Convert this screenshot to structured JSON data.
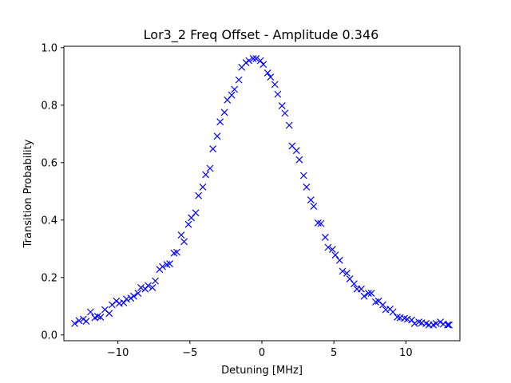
{
  "chart_data": {
    "type": "scatter",
    "title": "Lor3_2 Freq Offset - Amplitude 0.346",
    "xlabel": "Detuning [MHz]",
    "ylabel": "Transition Probability",
    "xlim": [
      -13.75,
      13.75
    ],
    "ylim": [
      -0.02,
      1.005
    ],
    "xticks": [
      -10,
      -5,
      0,
      5,
      10
    ],
    "xtick_labels": [
      "−10",
      "−5",
      "0",
      "5",
      "10"
    ],
    "yticks": [
      0.0,
      0.2,
      0.4,
      0.6,
      0.8,
      1.0
    ],
    "ytick_labels": [
      "0.0",
      "0.2",
      "0.4",
      "0.6",
      "0.8",
      "1.0"
    ],
    "grid": false,
    "marker": "x",
    "series": [
      {
        "color": "#0000ff",
        "x": [
          -13.0,
          -12.7,
          -12.4,
          -12.2,
          -11.9,
          -11.6,
          -11.4,
          -11.2,
          -10.9,
          -10.6,
          -10.4,
          -10.1,
          -9.9,
          -9.6,
          -9.4,
          -9.1,
          -8.9,
          -8.6,
          -8.4,
          -8.1,
          -7.9,
          -7.6,
          -7.4,
          -7.1,
          -6.9,
          -6.6,
          -6.4,
          -6.1,
          -5.9,
          -5.6,
          -5.4,
          -5.1,
          -4.9,
          -4.6,
          -4.4,
          -4.1,
          -3.9,
          -3.6,
          -3.4,
          -3.1,
          -2.9,
          -2.6,
          -2.4,
          -2.1,
          -1.9,
          -1.6,
          -1.4,
          -1.1,
          -0.9,
          -0.6,
          -0.4,
          -0.1,
          0.1,
          0.4,
          0.6,
          0.9,
          1.1,
          1.4,
          1.6,
          1.9,
          2.1,
          2.4,
          2.6,
          2.9,
          3.1,
          3.4,
          3.6,
          3.9,
          4.1,
          4.4,
          4.6,
          4.9,
          5.1,
          5.4,
          5.6,
          5.9,
          6.1,
          6.4,
          6.6,
          6.9,
          7.1,
          7.4,
          7.6,
          7.9,
          8.1,
          8.4,
          8.6,
          8.9,
          9.1,
          9.4,
          9.6,
          9.9,
          10.1,
          10.4,
          10.6,
          10.9,
          11.1,
          11.4,
          11.6,
          11.9,
          12.1,
          12.4,
          12.6,
          12.9,
          13.0
        ],
        "y": [
          0.04,
          0.05,
          0.055,
          0.048,
          0.08,
          0.06,
          0.065,
          0.062,
          0.088,
          0.075,
          0.105,
          0.118,
          0.11,
          0.112,
          0.125,
          0.128,
          0.135,
          0.145,
          0.165,
          0.16,
          0.172,
          0.165,
          0.188,
          0.228,
          0.238,
          0.245,
          0.248,
          0.285,
          0.288,
          0.348,
          0.325,
          0.385,
          0.408,
          0.425,
          0.485,
          0.515,
          0.558,
          0.58,
          0.648,
          0.692,
          0.742,
          0.775,
          0.818,
          0.835,
          0.855,
          0.888,
          0.932,
          0.948,
          0.955,
          0.962,
          0.962,
          0.955,
          0.942,
          0.912,
          0.898,
          0.872,
          0.838,
          0.798,
          0.772,
          0.73,
          0.658,
          0.642,
          0.61,
          0.555,
          0.515,
          0.47,
          0.448,
          0.39,
          0.388,
          0.34,
          0.305,
          0.298,
          0.278,
          0.26,
          0.222,
          0.215,
          0.195,
          0.178,
          0.16,
          0.16,
          0.135,
          0.145,
          0.145,
          0.115,
          0.118,
          0.105,
          0.088,
          0.09,
          0.08,
          0.062,
          0.06,
          0.058,
          0.055,
          0.052,
          0.04,
          0.045,
          0.042,
          0.04,
          0.035,
          0.035,
          0.04,
          0.045,
          0.038,
          0.035,
          0.035
        ]
      }
    ]
  }
}
